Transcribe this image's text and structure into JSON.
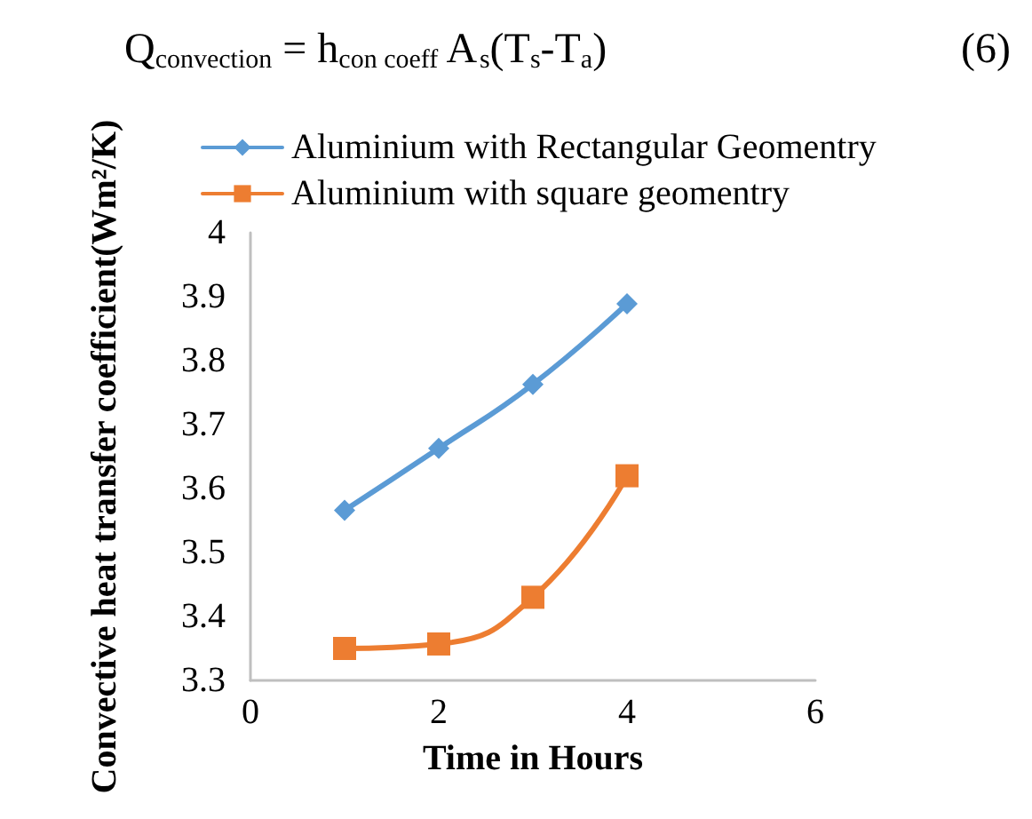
{
  "chart_data": {
    "type": "line",
    "xlabel": "Time in Hours",
    "ylabel": "Convective heat transfer coefficient(Wm²/K)",
    "annotations": [
      "Q$_{convection}$ = h$_{con coeff}$ A$_{s}$(T$_{s}$-T$_{a}$)",
      "(6)"
    ],
    "x": [
      1,
      2,
      3,
      4
    ],
    "series": [
      {
        "name": "Aluminium with Rectangular Geomentry",
        "color": "#5b9bd5",
        "marker": "diamond",
        "values": [
          3.566,
          3.663,
          3.763,
          3.889
        ]
      },
      {
        "name": "Aluminium with square geomentry",
        "color": "#ed7d31",
        "marker": "square",
        "values": [
          3.35,
          3.357,
          3.43,
          3.62
        ]
      }
    ],
    "xlim": [
      0,
      6
    ],
    "xticks": [
      0,
      2,
      4,
      6
    ],
    "ylim": [
      3.3,
      4
    ],
    "yticks": [
      3.3,
      3.4,
      3.5,
      3.6,
      3.7,
      3.8,
      3.9,
      4
    ],
    "grid": false,
    "legend": "top left",
    "line_style": "solid"
  }
}
